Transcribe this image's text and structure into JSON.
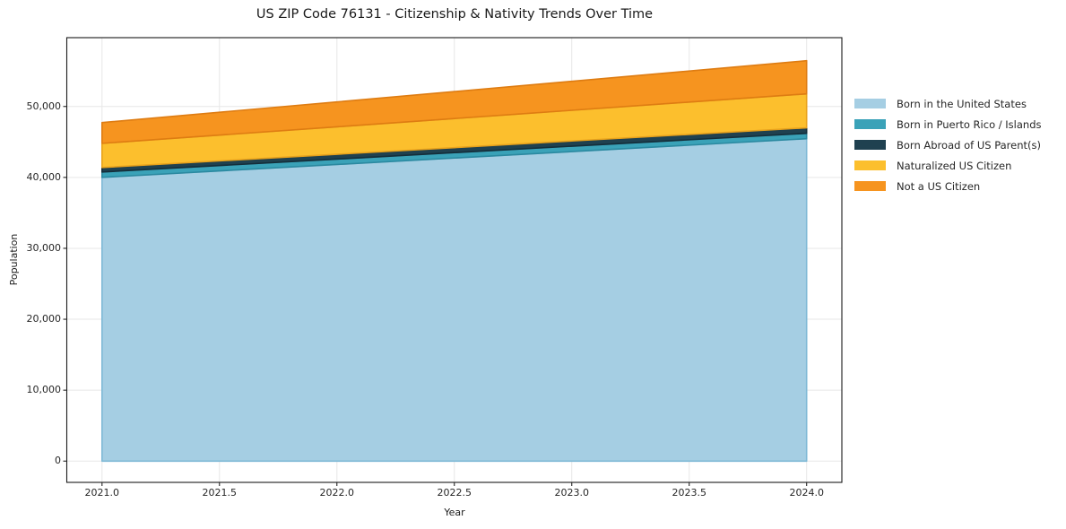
{
  "chart_data": {
    "type": "area",
    "stacked": true,
    "title": "US ZIP Code 76131 - Citizenship & Nativity Trends Over Time",
    "xlabel": "Year",
    "ylabel": "Population",
    "x": [
      2021,
      2022,
      2023,
      2024
    ],
    "series": [
      {
        "name": "Born in the United States",
        "color": "#a5cee3",
        "edge": "#7fb9d6",
        "values": [
          40000,
          41820,
          43640,
          45450
        ]
      },
      {
        "name": "Born in Puerto Rico / Islands",
        "color": "#3aa2b8",
        "edge": "#2b89a0",
        "values": [
          760,
          760,
          760,
          760
        ]
      },
      {
        "name": "Born Abroad of US Parent(s)",
        "color": "#1f4150",
        "edge": "#142e3a",
        "values": [
          630,
          680,
          730,
          780
        ]
      },
      {
        "name": "Naturalized US Citizen",
        "color": "#fcbf2d",
        "edge": "#e8a21c",
        "values": [
          3410,
          3870,
          4330,
          4790
        ]
      },
      {
        "name": "Not a US Citizen",
        "color": "#f6941f",
        "edge": "#de7c12",
        "values": [
          2930,
          3510,
          4090,
          4670
        ]
      }
    ],
    "totals": [
      47730,
      50640,
      53550,
      56450
    ],
    "x_tick_labels": [
      "2021.0",
      "2021.5",
      "2022.0",
      "2022.5",
      "2023.0",
      "2023.5",
      "2024.0"
    ],
    "x_tick_values": [
      2021.0,
      2021.5,
      2022.0,
      2022.5,
      2023.0,
      2023.5,
      2024.0
    ],
    "y_tick_labels": [
      "0",
      "10,000",
      "20,000",
      "30,000",
      "40,000",
      "50,000"
    ],
    "y_tick_values": [
      0,
      10000,
      20000,
      30000,
      40000,
      50000
    ],
    "xlim": [
      2020.85,
      2024.15
    ],
    "ylim": [
      -3000,
      59700
    ],
    "grid": true,
    "legend_position": "right"
  },
  "style": {
    "background": "#ffffff",
    "grid_color": "#e7e7e7",
    "spine_color": "#1a1a1a",
    "tick_color": "#262626",
    "text_color": "#262626"
  }
}
